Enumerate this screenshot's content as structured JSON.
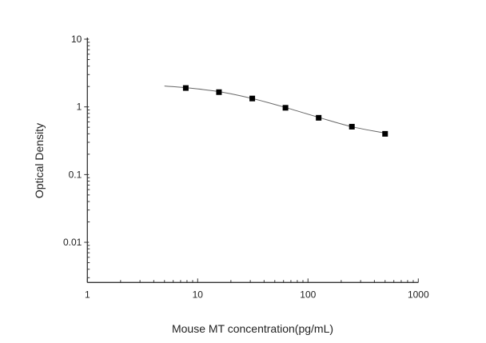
{
  "chart_data": {
    "type": "scatter",
    "title": "",
    "xlabel": "Mouse MT concentration(pg/mL)",
    "ylabel": "Optical Density",
    "xscale": "log",
    "yscale": "log",
    "xlim": [
      1,
      1000
    ],
    "ylim": [
      0.00255,
      10
    ],
    "x_ticks": [
      1,
      10,
      100,
      1000
    ],
    "x_tick_labels": [
      "1",
      "10",
      "100",
      "1000"
    ],
    "y_ticks": [
      0.01,
      0.1,
      1,
      10
    ],
    "y_tick_labels": [
      "0.01",
      "0.1",
      "1",
      "10"
    ],
    "grid": false,
    "legend": "none",
    "series": [
      {
        "marker": "square",
        "color": "#000000",
        "x": [
          7.8,
          15.6,
          31.25,
          62.5,
          125,
          250,
          500
        ],
        "y": [
          1.9,
          1.65,
          1.33,
          0.97,
          0.69,
          0.51,
          0.4
        ]
      }
    ],
    "fit_curve": {
      "color": "#666666",
      "x": [
        5,
        7.8,
        15.6,
        31.25,
        62.5,
        125,
        250,
        500
      ],
      "y": [
        2.03,
        1.92,
        1.68,
        1.33,
        0.98,
        0.7,
        0.51,
        0.41
      ]
    }
  }
}
